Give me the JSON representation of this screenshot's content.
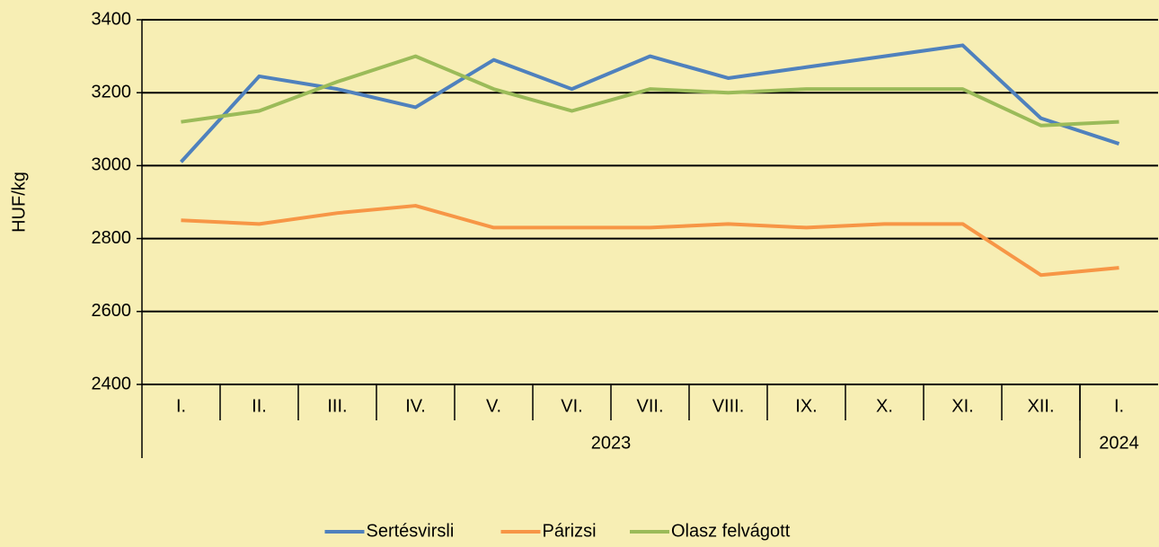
{
  "chart_data": {
    "type": "line",
    "y_axis_label": "HUF/kg",
    "categories": [
      "I.",
      "II.",
      "III.",
      "IV.",
      "V.",
      "VI.",
      "VII.",
      "VIII.",
      "IX.",
      "X.",
      "XI.",
      "XII.",
      "I."
    ],
    "year_groups": [
      {
        "label": "2023",
        "span": 12
      },
      {
        "label": "2024",
        "span": 1
      }
    ],
    "series": [
      {
        "name": "Sertésvirsli",
        "color": "#4f81bd",
        "values": [
          3010,
          3245,
          3210,
          3160,
          3290,
          3210,
          3300,
          3240,
          3270,
          3300,
          3330,
          3130,
          3060
        ]
      },
      {
        "name": "Párizsi",
        "color": "#f79646",
        "values": [
          2850,
          2840,
          2870,
          2890,
          2830,
          2830,
          2830,
          2840,
          2830,
          2840,
          2840,
          2700,
          2720
        ]
      },
      {
        "name": "Olasz felvágott",
        "color": "#9bbb59",
        "values": [
          3120,
          3150,
          3230,
          3300,
          3210,
          3150,
          3210,
          3200,
          3210,
          3210,
          3210,
          3110,
          3120
        ]
      }
    ],
    "ylim": [
      2400,
      3400
    ],
    "yticks": [
      2400,
      2600,
      2800,
      3000,
      3200,
      3400
    ],
    "grid": true,
    "legend": "bottom"
  }
}
